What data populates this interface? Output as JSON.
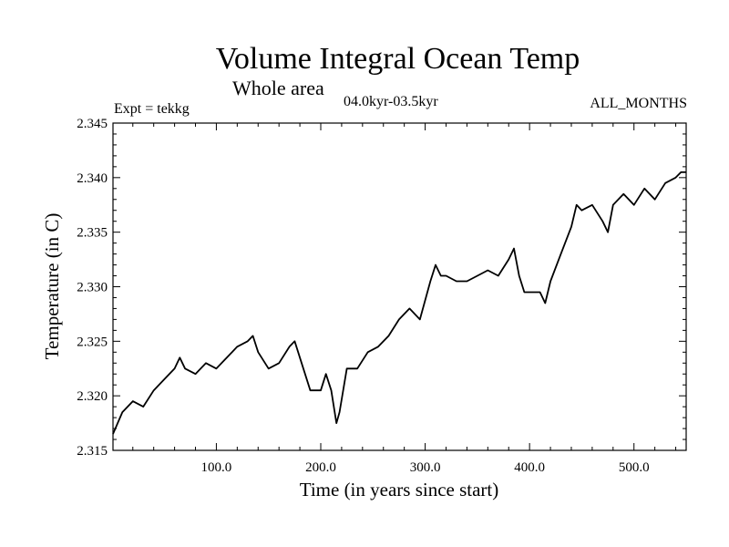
{
  "header": {
    "title": "Volume Integral Ocean Temp",
    "subtitle": "Whole area",
    "period": "04.0kyr-03.5kyr",
    "expt": "Expt = tekkg",
    "months": "ALL_MONTHS"
  },
  "chart_data": {
    "type": "line",
    "title": "Volume Integral Ocean Temp",
    "subtitle": "Whole area",
    "xlabel": "Time (in years since start)",
    "ylabel": "Temperature (in C)",
    "xlim": [
      1,
      550
    ],
    "ylim": [
      2.315,
      2.345
    ],
    "x_ticks": [
      100,
      200,
      300,
      400,
      500
    ],
    "x_tick_labels": [
      "100.0",
      "200.0",
      "300.0",
      "400.0",
      "500.0"
    ],
    "y_ticks": [
      2.315,
      2.32,
      2.325,
      2.33,
      2.335,
      2.34,
      2.345
    ],
    "y_tick_labels": [
      "2.315",
      "2.320",
      "2.325",
      "2.330",
      "2.335",
      "2.340",
      "2.345"
    ],
    "grid": false,
    "line_color": "#000000",
    "series": [
      {
        "name": "Volume integral ocean temperature",
        "x": [
          1,
          10,
          20,
          30,
          40,
          50,
          60,
          65,
          70,
          80,
          90,
          100,
          110,
          120,
          130,
          135,
          140,
          150,
          160,
          170,
          175,
          180,
          190,
          200,
          205,
          210,
          215,
          218,
          225,
          235,
          245,
          255,
          265,
          275,
          285,
          295,
          305,
          310,
          315,
          320,
          330,
          340,
          350,
          360,
          370,
          380,
          385,
          390,
          395,
          400,
          410,
          415,
          420,
          430,
          440,
          445,
          450,
          460,
          470,
          475,
          480,
          490,
          500,
          510,
          520,
          530,
          540,
          545,
          550
        ],
        "y": [
          2.3165,
          2.3185,
          2.3195,
          2.319,
          2.3205,
          2.3215,
          2.3225,
          2.3235,
          2.3225,
          2.322,
          2.323,
          2.3225,
          2.3235,
          2.3245,
          2.325,
          2.3255,
          2.324,
          2.3225,
          2.323,
          2.3245,
          2.325,
          2.3235,
          2.3205,
          2.3205,
          2.322,
          2.3205,
          2.3175,
          2.3185,
          2.3225,
          2.3225,
          2.324,
          2.3245,
          2.3255,
          2.327,
          2.328,
          2.327,
          2.3305,
          2.332,
          2.331,
          2.331,
          2.3305,
          2.3305,
          2.331,
          2.3315,
          2.331,
          2.3325,
          2.3335,
          2.331,
          2.3295,
          2.3295,
          2.3295,
          2.3285,
          2.3305,
          2.333,
          2.3355,
          2.3375,
          2.337,
          2.3375,
          2.336,
          2.335,
          2.3375,
          2.3385,
          2.3375,
          2.339,
          2.338,
          2.3395,
          2.34,
          2.3405,
          2.3405
        ]
      }
    ]
  }
}
